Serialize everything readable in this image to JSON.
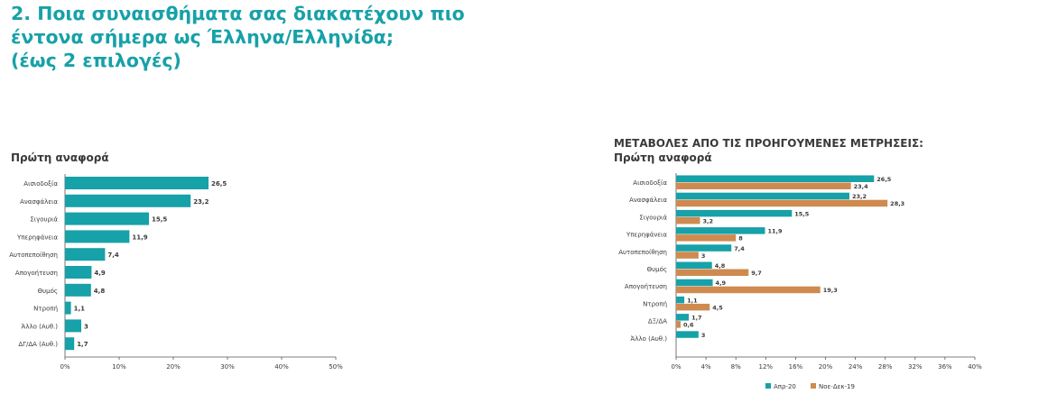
{
  "page": {
    "title_lines": [
      "2. Ποια συναισθήματα σας διακατέχουν πιο",
      "έντονα σήμερα ως Έλληνα/Ελληνίδα;",
      "(έως 2 επιλογές)"
    ]
  },
  "left_chart": {
    "heading": "Πρώτη αναφορά"
  },
  "right_chart": {
    "heading_line1": "ΜΕΤΑΒΟΛΕΣ ΑΠΟ ΤΙΣ ΠΡΟΗΓΟΥΜΕΝΕΣ ΜΕΤΡΗΣΕΙΣ:",
    "heading_line2": "Πρώτη αναφορά"
  },
  "colors": {
    "accent": "#17a1a8",
    "teal_bar": "#17a1a8",
    "orange_bar": "#cf8a4f",
    "text": "#3a3a3a"
  },
  "chart_data": [
    {
      "type": "bar",
      "orientation": "horizontal",
      "title": "Πρώτη αναφορά",
      "categories": [
        "Αισιοδοξία",
        "Ανασφάλεια",
        "Σιγουριά",
        "Υπερηφάνεια",
        "Αυτοπεποίθηση",
        "Απογοήτευση",
        "Θυμός",
        "Ντροπή",
        "Άλλο (Αυθ.)",
        "ΔΓ/ΔΑ (Αυθ.)"
      ],
      "values": [
        26.5,
        23.2,
        15.5,
        11.9,
        7.4,
        4.9,
        4.8,
        1.1,
        3,
        1.7
      ],
      "value_labels": [
        "26,5",
        "23,2",
        "15,5",
        "11,9",
        "7,4",
        "4,9",
        "4,8",
        "1,1",
        "3",
        "1,7"
      ],
      "xlim": [
        0,
        50
      ],
      "xticks": [
        "0%",
        "10%",
        "20%",
        "30%",
        "40%",
        "50%"
      ],
      "grid": false
    },
    {
      "type": "bar",
      "orientation": "horizontal",
      "title": "ΜΕΤΑΒΟΛΕΣ ΑΠΟ ΤΙΣ ΠΡΟΗΓΟΥΜΕΝΕΣ ΜΕΤΡΗΣΕΙΣ: Πρώτη αναφορά",
      "categories": [
        "Αισιοδοξία",
        "Ανασφάλεια",
        "Σιγουριά",
        "Υπερηφάνεια",
        "Αυτοπεποίθηση",
        "Θυμός",
        "Απογοήτευση",
        "Ντροπή",
        "ΔΞ/ΔΑ",
        "Άλλο (Αυθ.)"
      ],
      "series": [
        {
          "name": "Απρ-20",
          "values": [
            26.5,
            23.2,
            15.5,
            11.9,
            7.4,
            4.8,
            4.9,
            1.1,
            1.7,
            3
          ],
          "value_labels": [
            "26,5",
            "23,2",
            "15,5",
            "11,9",
            "7,4",
            "4,8",
            "4,9",
            "1,1",
            "1,7",
            "3"
          ]
        },
        {
          "name": "Νοε-Δεκ-19",
          "values": [
            23.4,
            28.3,
            3.2,
            8,
            3,
            9.7,
            19.3,
            4.5,
            0.6,
            null
          ],
          "value_labels": [
            "23,4",
            "28,3",
            "3,2",
            "8",
            "3",
            "9,7",
            "19,3",
            "4,5",
            "0,6",
            null
          ]
        }
      ],
      "xlim": [
        0,
        40
      ],
      "xticks": [
        "0%",
        "4%",
        "8%",
        "12%",
        "16%",
        "20%",
        "24%",
        "28%",
        "32%",
        "36%",
        "40%"
      ],
      "legend": "bottom",
      "grid": false
    }
  ]
}
